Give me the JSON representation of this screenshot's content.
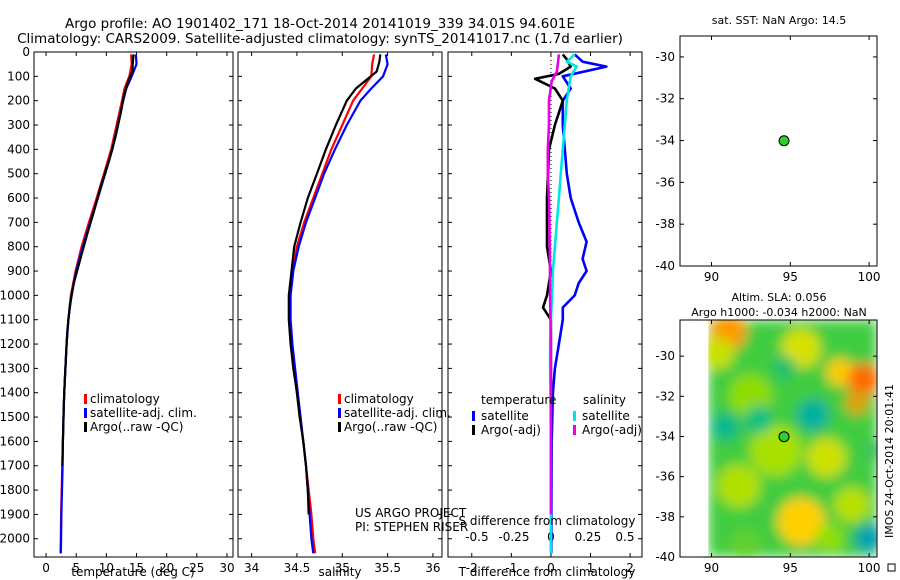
{
  "header": {
    "line1": "Argo profile: AO 1901402_171 18-Oct-2014 20141019_339 34.01S 94.601E",
    "line2": "Climatology: CARS2009. Satellite-adjusted climatology: synTS_20141017.nc (1.7d earlier)"
  },
  "colors": {
    "climatology": "#ff0000",
    "satellite": "#0000ff",
    "argo": "#000000",
    "satellite_diff": "#00e5e5",
    "argo_diff": "#e600e6"
  },
  "chart_data": [
    {
      "id": "temperature",
      "type": "line",
      "xlabel": "temperature (deg C)",
      "ylabel": "",
      "xlim": [
        -2,
        31
      ],
      "ylim": [
        2075,
        0
      ],
      "xticks": [
        0,
        5,
        10,
        15,
        20,
        25,
        30
      ],
      "yticks": [
        0,
        100,
        200,
        300,
        400,
        500,
        600,
        700,
        800,
        900,
        1000,
        1100,
        1200,
        1300,
        1400,
        1500,
        1600,
        1700,
        1800,
        1900,
        2000
      ],
      "legend": [
        "climatology",
        "satellite-adj. clim.",
        "Argo(..raw -QC)"
      ],
      "series": [
        {
          "name": "climatology",
          "color": "#ff0000",
          "points": [
            [
              14.1,
              10
            ],
            [
              14.2,
              50
            ],
            [
              13.8,
              100
            ],
            [
              13.0,
              150
            ],
            [
              12.6,
              200
            ],
            [
              11.7,
              300
            ],
            [
              10.8,
              400
            ],
            [
              9.6,
              500
            ],
            [
              8.4,
              600
            ],
            [
              7.1,
              700
            ],
            [
              5.9,
              800
            ],
            [
              4.9,
              900
            ],
            [
              4.1,
              1000
            ],
            [
              3.7,
              1100
            ],
            [
              3.4,
              1200
            ],
            [
              3.2,
              1300
            ],
            [
              3.0,
              1400
            ],
            [
              2.9,
              1500
            ],
            [
              2.8,
              1600
            ],
            [
              2.7,
              1700
            ],
            [
              2.6,
              1800
            ],
            [
              2.5,
              1900
            ],
            [
              2.45,
              2000
            ],
            [
              2.4,
              2060
            ]
          ]
        },
        {
          "name": "satellite-adj. clim.",
          "color": "#0000ff",
          "points": [
            [
              14.9,
              10
            ],
            [
              15.0,
              50
            ],
            [
              14.2,
              100
            ],
            [
              13.3,
              150
            ],
            [
              12.8,
              200
            ],
            [
              11.9,
              300
            ],
            [
              11.0,
              400
            ],
            [
              9.8,
              500
            ],
            [
              8.6,
              600
            ],
            [
              7.3,
              700
            ],
            [
              6.1,
              800
            ],
            [
              5.0,
              900
            ],
            [
              4.2,
              1000
            ],
            [
              3.7,
              1100
            ],
            [
              3.4,
              1200
            ],
            [
              3.2,
              1300
            ],
            [
              3.0,
              1400
            ],
            [
              2.9,
              1500
            ],
            [
              2.8,
              1600
            ],
            [
              2.75,
              1700
            ],
            [
              2.65,
              1800
            ],
            [
              2.55,
              1900
            ],
            [
              2.5,
              2000
            ],
            [
              2.45,
              2060
            ]
          ]
        },
        {
          "name": "Argo(..raw -QC)",
          "color": "#000000",
          "points": [
            [
              14.5,
              10
            ],
            [
              14.4,
              40
            ],
            [
              14.3,
              80
            ],
            [
              13.6,
              120
            ],
            [
              12.9,
              180
            ],
            [
              12.4,
              250
            ],
            [
              11.5,
              350
            ],
            [
              10.4,
              450
            ],
            [
              9.1,
              550
            ],
            [
              8.0,
              650
            ],
            [
              6.8,
              750
            ],
            [
              5.7,
              850
            ],
            [
              4.6,
              950
            ],
            [
              3.9,
              1050
            ],
            [
              3.5,
              1150
            ],
            [
              3.3,
              1250
            ],
            [
              3.1,
              1350
            ],
            [
              2.95,
              1450
            ],
            [
              2.85,
              1550
            ],
            [
              2.75,
              1650
            ],
            [
              2.7,
              1700
            ]
          ]
        }
      ]
    },
    {
      "id": "salinity",
      "type": "line",
      "xlabel": "salinity",
      "ylabel": "",
      "xlim": [
        33.85,
        36.1
      ],
      "ylim": [
        2075,
        0
      ],
      "xticks": [
        34,
        34.5,
        35,
        35.5,
        36
      ],
      "xtick_labels": [
        "34",
        "34.5",
        "35",
        "35.5",
        "36"
      ],
      "legend": [
        "climatology",
        "satellite-adj. clim.",
        "Argo(..raw -QC)"
      ],
      "annotation": [
        "US ARGO PROJECT",
        "PI: STEPHEN RISER"
      ],
      "series": [
        {
          "name": "climatology",
          "color": "#ff0000",
          "points": [
            [
              35.35,
              10
            ],
            [
              35.33,
              50
            ],
            [
              35.32,
              100
            ],
            [
              35.22,
              150
            ],
            [
              35.12,
              200
            ],
            [
              35.0,
              300
            ],
            [
              34.88,
              400
            ],
            [
              34.78,
              500
            ],
            [
              34.68,
              600
            ],
            [
              34.58,
              700
            ],
            [
              34.5,
              800
            ],
            [
              34.45,
              900
            ],
            [
              34.42,
              1000
            ],
            [
              34.42,
              1100
            ],
            [
              34.44,
              1200
            ],
            [
              34.47,
              1300
            ],
            [
              34.5,
              1400
            ],
            [
              34.53,
              1500
            ],
            [
              34.57,
              1600
            ],
            [
              34.6,
              1700
            ],
            [
              34.63,
              1800
            ],
            [
              34.66,
              1900
            ],
            [
              34.68,
              2000
            ],
            [
              34.7,
              2060
            ]
          ]
        },
        {
          "name": "satellite-adj. clim.",
          "color": "#0000ff",
          "points": [
            [
              35.48,
              10
            ],
            [
              35.5,
              50
            ],
            [
              35.45,
              100
            ],
            [
              35.32,
              150
            ],
            [
              35.2,
              200
            ],
            [
              35.05,
              300
            ],
            [
              34.92,
              400
            ],
            [
              34.8,
              500
            ],
            [
              34.7,
              600
            ],
            [
              34.6,
              700
            ],
            [
              34.52,
              800
            ],
            [
              34.46,
              900
            ],
            [
              34.43,
              1000
            ],
            [
              34.43,
              1100
            ],
            [
              34.45,
              1200
            ],
            [
              34.48,
              1300
            ],
            [
              34.51,
              1400
            ],
            [
              34.54,
              1500
            ],
            [
              34.57,
              1600
            ],
            [
              34.6,
              1700
            ],
            [
              34.62,
              1800
            ],
            [
              34.64,
              1900
            ],
            [
              34.66,
              2000
            ],
            [
              34.68,
              2060
            ]
          ]
        },
        {
          "name": "Argo(..raw -QC)",
          "color": "#000000",
          "points": [
            [
              35.42,
              10
            ],
            [
              35.41,
              40
            ],
            [
              35.38,
              80
            ],
            [
              35.15,
              150
            ],
            [
              35.05,
              200
            ],
            [
              34.93,
              300
            ],
            [
              34.82,
              400
            ],
            [
              34.72,
              500
            ],
            [
              34.62,
              600
            ],
            [
              34.54,
              700
            ],
            [
              34.47,
              800
            ],
            [
              34.44,
              900
            ],
            [
              34.41,
              1000
            ],
            [
              34.41,
              1100
            ],
            [
              34.43,
              1200
            ],
            [
              34.46,
              1300
            ],
            [
              34.5,
              1400
            ],
            [
              34.53,
              1500
            ],
            [
              34.57,
              1600
            ],
            [
              34.6,
              1700
            ],
            [
              34.62,
              1800
            ],
            [
              34.63,
              1900
            ]
          ]
        }
      ]
    },
    {
      "id": "difference",
      "type": "line",
      "xlabel": "T difference from climatology",
      "xlabel_top": "S difference from climatology",
      "xlim": [
        -2.6,
        2.3
      ],
      "ylim": [
        2075,
        0
      ],
      "xticks": [
        -2,
        -1,
        0,
        1,
        2
      ],
      "xtick_labels": [
        "-2",
        "-1",
        "0",
        "1",
        "2"
      ],
      "xticks_top": [
        -0.5,
        -0.25,
        0,
        0.25,
        0.5
      ],
      "xtick_labels_top": [
        "-0.5",
        "-0.25",
        "0",
        "0.25",
        "0.5"
      ],
      "legend_titles": [
        "temperature",
        "salinity"
      ],
      "legend": [
        "satellite",
        "Argo(-adj)",
        "satellite",
        "Argo(-adj)"
      ],
      "series": [
        {
          "name": "temperature satellite",
          "color": "#0000ff",
          "points": [
            [
              0.6,
              10
            ],
            [
              0.8,
              40
            ],
            [
              1.4,
              60
            ],
            [
              0.3,
              100
            ],
            [
              0.5,
              150
            ],
            [
              0.3,
              200
            ],
            [
              0.3,
              300
            ],
            [
              0.35,
              400
            ],
            [
              0.4,
              500
            ],
            [
              0.5,
              600
            ],
            [
              0.7,
              700
            ],
            [
              0.9,
              780
            ],
            [
              0.8,
              850
            ],
            [
              0.9,
              900
            ],
            [
              0.7,
              950
            ],
            [
              0.6,
              1000
            ],
            [
              0.3,
              1050
            ],
            [
              0.3,
              1100
            ],
            [
              0.2,
              1200
            ],
            [
              0.1,
              1300
            ],
            [
              0.05,
              1400
            ],
            [
              0.02,
              1600
            ],
            [
              0.01,
              2060
            ]
          ]
        },
        {
          "name": "temperature Argo(-adj)",
          "color": "#000000",
          "points": [
            [
              0.3,
              10
            ],
            [
              0.4,
              30
            ],
            [
              0.5,
              60
            ],
            [
              0.2,
              90
            ],
            [
              -0.4,
              110
            ],
            [
              0.1,
              150
            ],
            [
              0.3,
              200
            ],
            [
              0.1,
              300
            ],
            [
              -0.05,
              400
            ],
            [
              -0.1,
              600
            ],
            [
              -0.1,
              800
            ],
            [
              0.0,
              900
            ],
            [
              -0.1,
              1000
            ],
            [
              -0.2,
              1050
            ],
            [
              0.0,
              1100
            ],
            [
              0.0,
              1300
            ],
            [
              0.0,
              1500
            ],
            [
              0.0,
              1700
            ]
          ]
        },
        {
          "name": "salinity satellite",
          "color": "#00e5e5",
          "points": [
            [
              0.6,
              10
            ],
            [
              0.4,
              40
            ],
            [
              0.65,
              60
            ],
            [
              0.5,
              100
            ],
            [
              0.4,
              200
            ],
            [
              0.35,
              300
            ],
            [
              0.3,
              400
            ],
            [
              0.25,
              500
            ],
            [
              0.2,
              600
            ],
            [
              0.15,
              700
            ],
            [
              0.1,
              800
            ],
            [
              0.05,
              900
            ],
            [
              0.03,
              1000
            ],
            [
              0.0,
              1100
            ],
            [
              -0.02,
              1200
            ],
            [
              -0.02,
              1300
            ],
            [
              -0.01,
              1400
            ],
            [
              0.0,
              1600
            ],
            [
              0.0,
              2060
            ]
          ]
        },
        {
          "name": "salinity Argo(-adj)",
          "color": "#e600e6",
          "points": [
            [
              0.2,
              10
            ],
            [
              0.18,
              40
            ],
            [
              0.15,
              80
            ],
            [
              0.02,
              120
            ],
            [
              -0.05,
              200
            ],
            [
              -0.05,
              300
            ],
            [
              -0.08,
              400
            ],
            [
              -0.08,
              500
            ],
            [
              -0.05,
              600
            ],
            [
              -0.03,
              800
            ],
            [
              -0.02,
              1000
            ],
            [
              0.0,
              1200
            ],
            [
              0.0,
              1500
            ],
            [
              0.0,
              1900
            ]
          ]
        }
      ]
    },
    {
      "id": "map_sst",
      "type": "scatter",
      "title": "sat. SST: NaN Argo: 14.5",
      "xlim": [
        88,
        100.5
      ],
      "ylim": [
        -40,
        -29
      ],
      "xticks": [
        90,
        95,
        100
      ],
      "yticks": [
        -30,
        -32,
        -34,
        -36,
        -38,
        -40
      ],
      "points": [
        [
          94.6,
          -34.01
        ]
      ],
      "marker_color": "#33cc33"
    },
    {
      "id": "map_sla",
      "type": "heatmap",
      "title_lines": [
        "Altim. SLA: 0.056",
        "Argo h1000: -0.034 h2000: NaN"
      ],
      "xlim": [
        88,
        100.5
      ],
      "ylim": [
        -40,
        -28.2
      ],
      "xticks": [
        90,
        95,
        100
      ],
      "yticks": [
        -30,
        -32,
        -34,
        -36,
        -38,
        -40
      ],
      "points": [
        [
          94.6,
          -34.01
        ]
      ],
      "marker_color": "#33cc33",
      "side_label": "IMOS 24-Oct-2014 20:01:41"
    }
  ]
}
